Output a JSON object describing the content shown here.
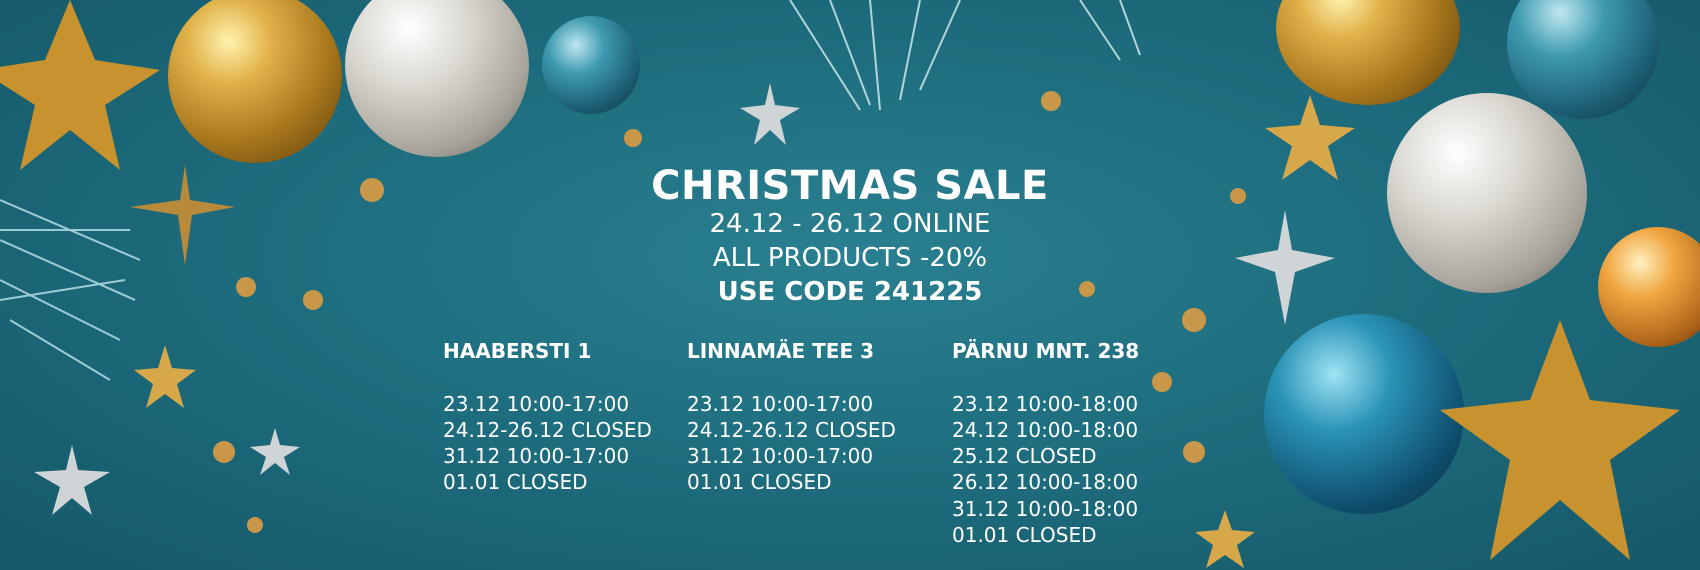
{
  "banner": {
    "title": "CHRISTMAS SALE",
    "line1": "24.12 - 26.12 ONLINE",
    "line2": "ALL PRODUCTS -20%",
    "line3": "USE CODE 241225"
  },
  "stores": [
    {
      "name": "HAABERSTI 1",
      "hours": [
        "23.12 10:00-17:00",
        "24.12-26.12 CLOSED",
        "31.12 10:00-17:00",
        "01.01 CLOSED"
      ]
    },
    {
      "name": "LINNAMÄE TEE 3",
      "hours": [
        "23.12 10:00-17:00",
        "24.12-26.12 CLOSED",
        "31.12 10:00-17:00",
        "01.01 CLOSED"
      ]
    },
    {
      "name": "PÄRNU MNT. 238",
      "hours": [
        "23.12 10:00-18:00",
        "24.12 10:00-18:00",
        "25.12 CLOSED",
        "26.12 10:00-18:00",
        "31.12 10:00-18:00",
        "01.01 CLOSED"
      ]
    }
  ],
  "colors": {
    "background": "#1e6e7f",
    "text": "#ffffff",
    "accent_gold": "#d4a23a"
  }
}
